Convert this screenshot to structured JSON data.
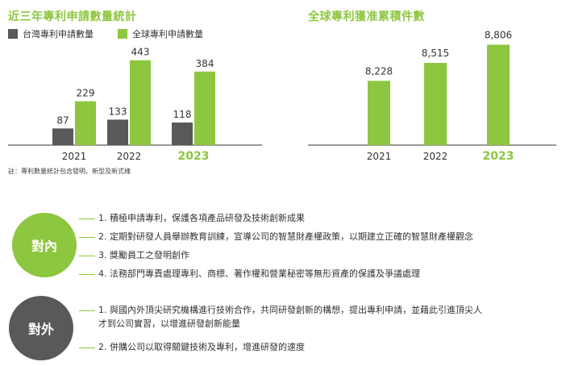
{
  "left_chart": {
    "title": "近三年專利申請數量統計",
    "legend": [
      {
        "label": "台灣專利申請數量",
        "color": "#595959"
      },
      {
        "label": "全球專利申請數量",
        "color": "#8dc63f"
      }
    ],
    "note": "註：專利數量統計包含發明、新型及新式樣"
  },
  "right_chart": {
    "title": "全球專利獲准累積件數"
  },
  "chart_data": [
    {
      "type": "bar",
      "title": "近三年專利申請數量統計",
      "categories": [
        "2021",
        "2022",
        "2023"
      ],
      "series": [
        {
          "name": "台灣專利申請數量",
          "values": [
            87,
            133,
            118
          ],
          "color": "#595959"
        },
        {
          "name": "全球專利申請數量",
          "values": [
            229,
            443,
            384
          ],
          "color": "#8dc63f"
        }
      ],
      "highlight_category": "2023",
      "ylim": [
        0,
        500
      ],
      "grid": false,
      "legend_position": "top-left"
    },
    {
      "type": "bar",
      "title": "全球專利獲准累積件數",
      "categories": [
        "2021",
        "2022",
        "2023"
      ],
      "values": [
        8228,
        8515,
        8806
      ],
      "value_labels": [
        "8,228",
        "8,515",
        "8,806"
      ],
      "color": "#8dc63f",
      "highlight_category": "2023",
      "ylim": [
        7200,
        8900
      ],
      "grid": false
    }
  ],
  "strategy": {
    "internal": {
      "label": "對內",
      "color": "#8dc63f",
      "items": [
        "1. 積極申請專利，保護各項產品研發及技術創新成果",
        "2. 定期對研發人員舉辦教育訓練，宣導公司的智慧財產權政策，以期建立正確的智慧財產權觀念",
        "3. 獎勵員工之發明創作",
        "4. 法務部門專責處理專利、商標、著作權和營業秘密等無形資產的保護及爭議處理"
      ]
    },
    "external": {
      "label": "對外",
      "color": "#595959",
      "items": [
        "1. 與國內外頂尖研究機構進行技術合作，共同研發創新的構想，提出專利申請，並藉此引進頂尖人\n才到公司實習，以增進研發創新能量",
        "2. 併購公司以取得關鍵技術及專利，增進研發的速度"
      ]
    }
  }
}
